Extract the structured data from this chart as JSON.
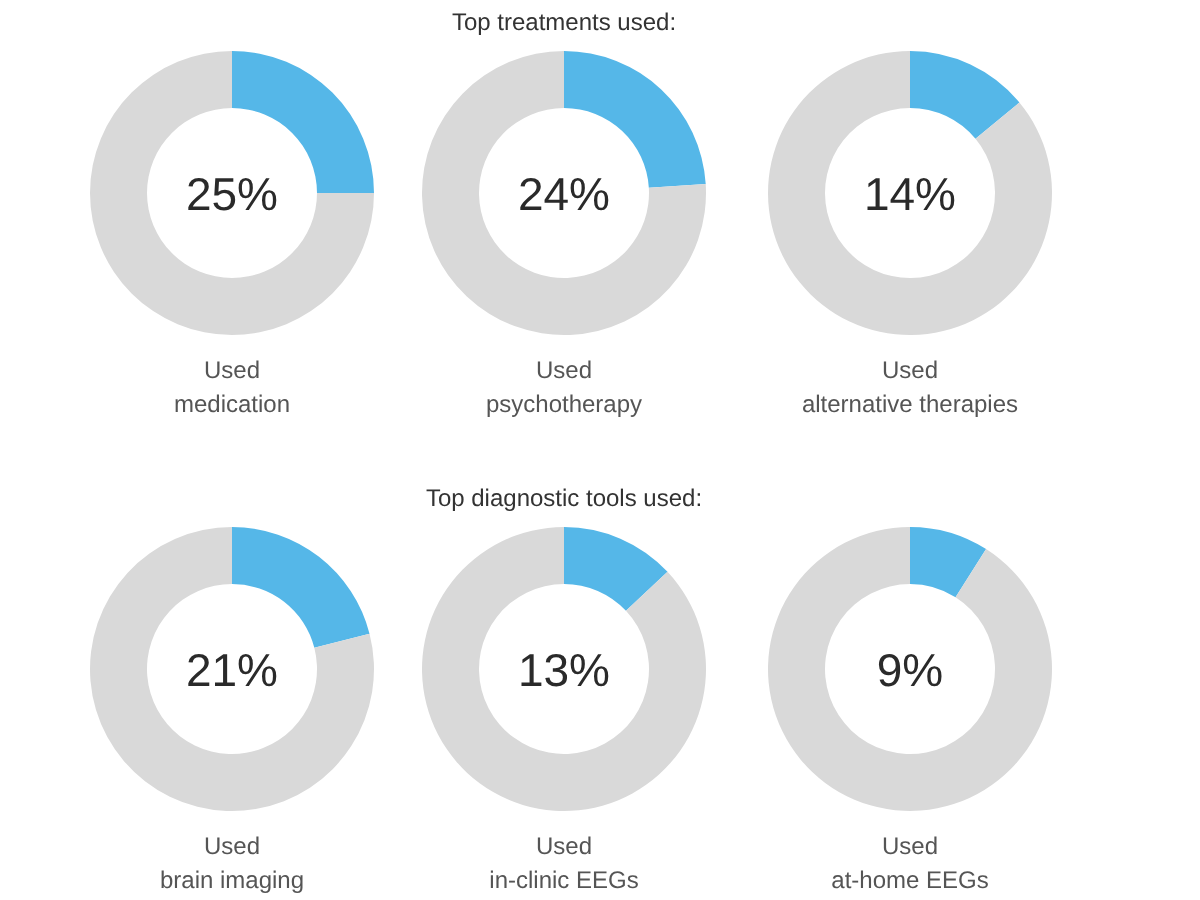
{
  "chart_data": [
    {
      "type": "donut",
      "xlabel": "Used\nmedication",
      "categories": [
        null,
        null
      ],
      "values": [
        25,
        75
      ],
      "colors": [
        "#55b7e8",
        "#d9d9d9"
      ],
      "annotations": [
        "25%"
      ]
    },
    {
      "type": "donut",
      "title": "Top treatments used:",
      "xlabel": "Used\npsychotherapy",
      "categories": [
        null,
        null
      ],
      "values": [
        24,
        76
      ],
      "colors": [
        "#55b7e8",
        "#d9d9d9"
      ],
      "annotations": [
        "24%"
      ]
    },
    {
      "type": "donut",
      "xlabel": "Used\nalternative therapies",
      "categories": [
        null,
        null
      ],
      "values": [
        14,
        86
      ],
      "colors": [
        "#55b7e8",
        "#d9d9d9"
      ],
      "annotations": [
        "14%"
      ]
    },
    {
      "type": "donut",
      "xlabel": "Used\nbrain imaging",
      "categories": [
        null,
        null
      ],
      "values": [
        21,
        79
      ],
      "colors": [
        "#55b7e8",
        "#d9d9d9"
      ],
      "annotations": [
        "21%"
      ]
    },
    {
      "type": "donut",
      "title": "Top diagnostic tools used:",
      "xlabel": "Used\nin-clinic EEGs",
      "categories": [
        null,
        null
      ],
      "values": [
        13,
        87
      ],
      "colors": [
        "#55b7e8",
        "#d9d9d9"
      ],
      "annotations": [
        "13%"
      ]
    },
    {
      "type": "donut",
      "xlabel": "Used\nat-home EEGs",
      "categories": [
        null,
        null
      ],
      "values": [
        9,
        91
      ],
      "colors": [
        "#55b7e8",
        "#d9d9d9"
      ],
      "annotations": [
        "9%"
      ]
    }
  ]
}
